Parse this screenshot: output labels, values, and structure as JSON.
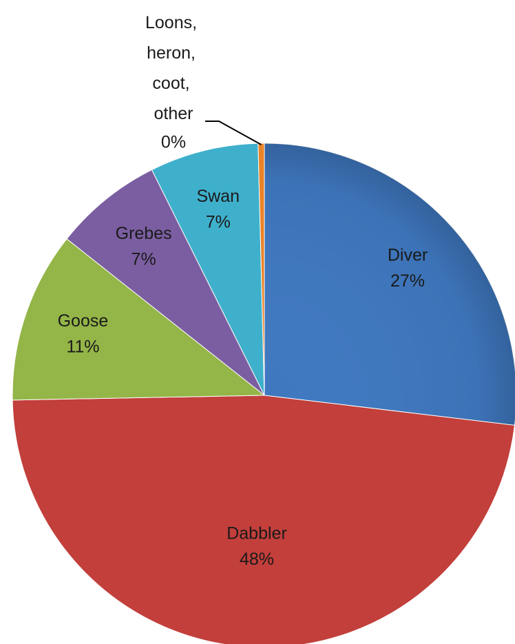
{
  "chart_data": {
    "type": "pie",
    "categories": [
      "Diver",
      "Dabbler",
      "Goose",
      "Grebes",
      "Swan",
      "Loons, heron, coot, other"
    ],
    "values": [
      27,
      48,
      11,
      7,
      7,
      0.4
    ],
    "value_labels": [
      "27%",
      "48%",
      "11%",
      "7%",
      "7%",
      "0%"
    ],
    "colors": [
      "#3f78c0",
      "#c23f3b",
      "#94b548",
      "#7b5ea1",
      "#3fb0cc",
      "#ea8328"
    ]
  }
}
